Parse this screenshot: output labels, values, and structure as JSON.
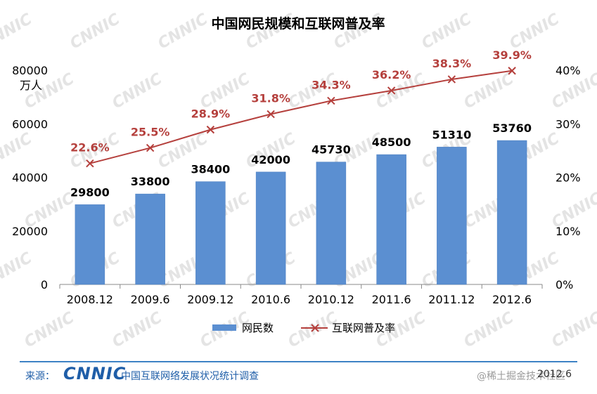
{
  "chart_data": {
    "type": "bar+line",
    "title": "中国网民规模和互联网普及率",
    "categories": [
      "2008.12",
      "2009.6",
      "2009.12",
      "2010.6",
      "2010.12",
      "2011.6",
      "2011.12",
      "2012.6"
    ],
    "series": [
      {
        "name": "网民数",
        "type": "bar",
        "axis": "left",
        "values": [
          29800,
          33800,
          38400,
          42000,
          45730,
          48500,
          51310,
          53760
        ]
      },
      {
        "name": "互联网普及率",
        "type": "line",
        "axis": "right",
        "values": [
          22.6,
          25.5,
          28.9,
          31.8,
          34.3,
          36.2,
          38.3,
          39.9
        ],
        "labels": [
          "22.6%",
          "25.5%",
          "28.9%",
          "31.8%",
          "34.3%",
          "36.2%",
          "38.3%",
          "39.9%"
        ]
      }
    ],
    "left_axis": {
      "ylim": [
        0,
        80000
      ],
      "ticks": [
        "0",
        "20000",
        "40000",
        "60000",
        "80000"
      ],
      "unit": "万人"
    },
    "right_axis": {
      "ylim": [
        0,
        40
      ],
      "ticks": [
        "0%",
        "10%",
        "20%",
        "30%",
        "40%"
      ]
    },
    "legend_position": "bottom",
    "colors": {
      "bar": "#5b8fd1",
      "bar_edge": "#4a7dbf",
      "line": "#b5403d",
      "label_line": "#b5403d",
      "label_bar": "#000000",
      "watermark": "#e4e4e4"
    }
  },
  "background_watermark": "CNNIC",
  "footer": {
    "source_label": "来源：",
    "logo": "CNNIC",
    "org": "中国互联网络发展状况统计调查",
    "watermark": "@稀土掘金技术社区",
    "date": "2012.6"
  }
}
